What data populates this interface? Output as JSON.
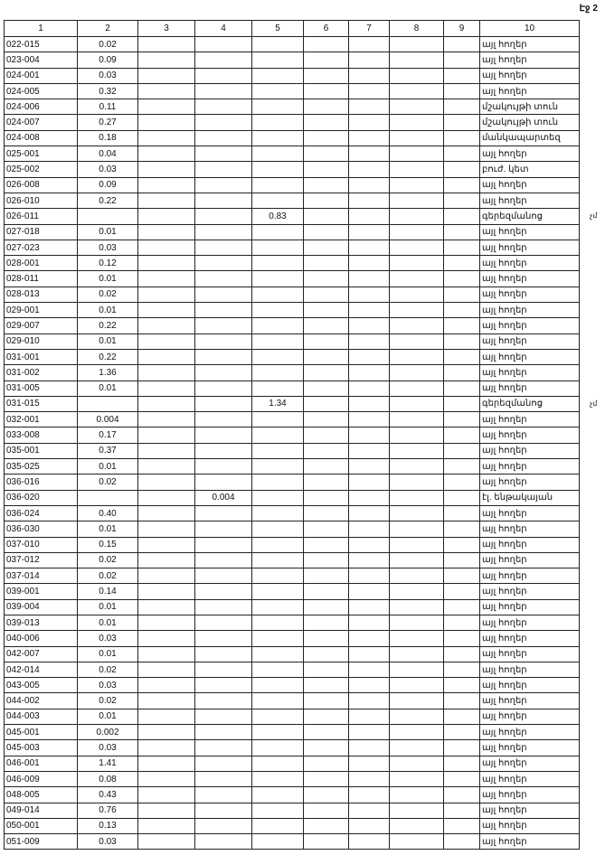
{
  "page_label": "Էջ 2",
  "headers": [
    "1",
    "2",
    "3",
    "4",
    "5",
    "6",
    "7",
    "8",
    "9",
    "10"
  ],
  "rows": [
    {
      "id": "022-015",
      "c2": "0.02",
      "c10": "այլ հողեր"
    },
    {
      "id": "023-004",
      "c2": "0.09",
      "c10": "այլ հողեր"
    },
    {
      "id": "024-001",
      "c2": "0.03",
      "c10": "այլ հողեր"
    },
    {
      "id": "024-005",
      "c2": "0.32",
      "c10": "այլ հողեր"
    },
    {
      "id": "024-006",
      "c2": "0.11",
      "c10": "մշակույթի տուն"
    },
    {
      "id": "024-007",
      "c2": "0.27",
      "c10": "մշակույթի տուն"
    },
    {
      "id": "024-008",
      "c2": "0.18",
      "c10": "մանկապարտեզ"
    },
    {
      "id": "025-001",
      "c2": "0.04",
      "c10": "այլ հողեր"
    },
    {
      "id": "025-002",
      "c2": "0.03",
      "c10": "բուժ. կետ"
    },
    {
      "id": "026-008",
      "c2": "0.09",
      "c10": "այլ հողեր"
    },
    {
      "id": "026-010",
      "c2": "0.22",
      "c10": "այլ հողեր"
    },
    {
      "id": "026-011",
      "c5": "0.83",
      "c10": "գերեզմանոց",
      "note": "չմ"
    },
    {
      "id": "027-018",
      "c2": "0.01",
      "c10": "այլ հողեր"
    },
    {
      "id": "027-023",
      "c2": "0.03",
      "c10": "այլ հողեր"
    },
    {
      "id": "028-001",
      "c2": "0.12",
      "c10": "այլ հողեր"
    },
    {
      "id": "028-011",
      "c2": "0.01",
      "c10": "այլ հողեր"
    },
    {
      "id": "028-013",
      "c2": "0.02",
      "c10": "այլ հողեր"
    },
    {
      "id": "029-001",
      "c2": "0.01",
      "c10": "այլ հողեր"
    },
    {
      "id": "029-007",
      "c2": "0.22",
      "c10": "այլ հողեր"
    },
    {
      "id": "029-010",
      "c2": "0.01",
      "c10": "այլ հողեր"
    },
    {
      "id": "031-001",
      "c2": "0.22",
      "c10": "այլ հողեր"
    },
    {
      "id": "031-002",
      "c2": "1.36",
      "c10": "այլ հողեր"
    },
    {
      "id": "031-005",
      "c2": "0.01",
      "c10": "այլ հողեր"
    },
    {
      "id": "031-015",
      "c5": "1.34",
      "c10": "գերեզմանոց",
      "note": "չմ"
    },
    {
      "id": "032-001",
      "c2": "0.004",
      "c10": "այլ հողեր"
    },
    {
      "id": "033-008",
      "c2": "0.17",
      "c10": "այլ հողեր"
    },
    {
      "id": "035-001",
      "c2": "0.37",
      "c10": "այլ հողեր"
    },
    {
      "id": "035-025",
      "c2": "0.01",
      "c10": "այլ հողեր"
    },
    {
      "id": "036-016",
      "c2": "0.02",
      "c10": "այլ հողեր"
    },
    {
      "id": "036-020",
      "c4": "0.004",
      "c10": "էլ. ենթակայան"
    },
    {
      "id": "036-024",
      "c2": "0.40",
      "c10": "այլ հողեր"
    },
    {
      "id": "036-030",
      "c2": "0.01",
      "c10": "այլ հողեր"
    },
    {
      "id": "037-010",
      "c2": "0.15",
      "c10": "այլ հողեր"
    },
    {
      "id": "037-012",
      "c2": "0.02",
      "c10": "այլ հողեր"
    },
    {
      "id": "037-014",
      "c2": "0.02",
      "c10": "այլ հողեր"
    },
    {
      "id": "039-001",
      "c2": "0.14",
      "c10": "այլ հողեր"
    },
    {
      "id": "039-004",
      "c2": "0.01",
      "c10": "այլ հողեր"
    },
    {
      "id": "039-013",
      "c2": "0.01",
      "c10": "այլ հողեր"
    },
    {
      "id": "040-006",
      "c2": "0.03",
      "c10": "այլ հողեր"
    },
    {
      "id": "042-007",
      "c2": "0.01",
      "c10": "այլ հողեր"
    },
    {
      "id": "042-014",
      "c2": "0.02",
      "c10": "այլ հողեր"
    },
    {
      "id": "043-005",
      "c2": "0.03",
      "c10": "այլ հողեր"
    },
    {
      "id": "044-002",
      "c2": "0.02",
      "c10": "այլ հողեր"
    },
    {
      "id": "044-003",
      "c2": "0.01",
      "c10": "այլ հողեր"
    },
    {
      "id": "045-001",
      "c2": "0.002",
      "c10": "այլ հողեր"
    },
    {
      "id": "045-003",
      "c2": "0.03",
      "c10": "այլ հողեր"
    },
    {
      "id": "046-001",
      "c2": "1.41",
      "c10": "այլ հողեր"
    },
    {
      "id": "046-009",
      "c2": "0.08",
      "c10": "այլ հողեր"
    },
    {
      "id": "048-005",
      "c2": "0.43",
      "c10": "այլ հողեր"
    },
    {
      "id": "049-014",
      "c2": "0.76",
      "c10": "այլ հողեր"
    },
    {
      "id": "050-001",
      "c2": "0.13",
      "c10": "այլ հողեր"
    },
    {
      "id": "051-009",
      "c2": "0.03",
      "c10": "այլ հողեր"
    }
  ]
}
